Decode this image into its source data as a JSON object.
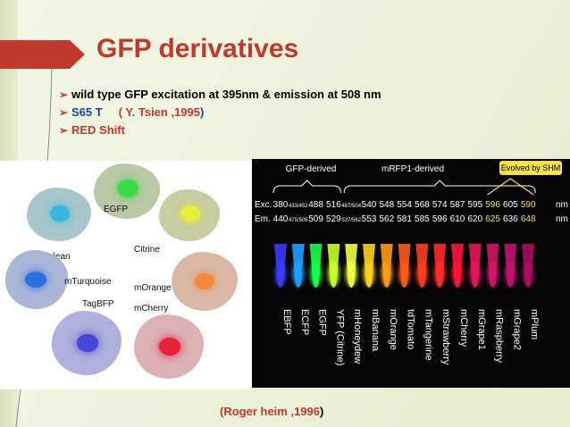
{
  "slide": {
    "title": "GFP derivatives",
    "bullets": [
      {
        "text": "wild type GFP excitation at 395nm & emission at 508 nm"
      },
      {
        "text_a": "S65 T",
        "text_b_open": "( ",
        "text_b_name": "Y. Tsien ,1995",
        "text_b_close": ")"
      },
      {
        "text": "RED Shift"
      }
    ],
    "citation": {
      "text": "(Roger heim ,1996",
      "close": ")"
    }
  },
  "proteins": [
    {
      "label": "EGFP",
      "color": "#3bdc4a"
    },
    {
      "label": "Citrine",
      "color": "#e6ee3a"
    },
    {
      "label": "Cerulean",
      "color": "#39b6e0"
    },
    {
      "label": "mTurquoise",
      "color": "#2f6fe0"
    },
    {
      "label": "mOrange",
      "color": "#f28a3a"
    },
    {
      "label": "TagBFP",
      "color": "#4848d8"
    },
    {
      "label": "mCherry",
      "color": "#e8203a"
    }
  ],
  "gel": {
    "group_labels": {
      "gfp": "GFP-derived",
      "mrfp": "mRFP1-derived",
      "shm": "Evolved by SHM"
    },
    "exc_label": "Exc.",
    "em_label": "Em.",
    "unit": "nm",
    "tubes": [
      {
        "name": "EBFP",
        "exc": "380",
        "em": "440",
        "color": "#3a3aff",
        "highlight": false
      },
      {
        "name": "ECFP",
        "exc": "433/452",
        "em": "475/505",
        "color": "#1fa0ff",
        "highlight": false
      },
      {
        "name": "EGFP",
        "exc": "488",
        "em": "509",
        "color": "#18ff4a",
        "highlight": false
      },
      {
        "name": "YFP (Citrine)",
        "exc": "516",
        "em": "529",
        "color": "#c8ff28",
        "highlight": false
      },
      {
        "name": "mHoneydew",
        "exc": "487/504",
        "em": "537/562",
        "color": "#f0ff40",
        "highlight": false
      },
      {
        "name": "mBanana",
        "exc": "540",
        "em": "553",
        "color": "#ffd21a",
        "highlight": false
      },
      {
        "name": "mOrange",
        "exc": "548",
        "em": "562",
        "color": "#ff9a12",
        "highlight": false
      },
      {
        "name": "tdTomato",
        "exc": "554",
        "em": "581",
        "color": "#ff5a12",
        "highlight": false
      },
      {
        "name": "mTangerine",
        "exc": "568",
        "em": "585",
        "color": "#ff3c20",
        "highlight": false
      },
      {
        "name": "mStrawberry",
        "exc": "574",
        "em": "596",
        "color": "#ff2a2a",
        "highlight": false
      },
      {
        "name": "mCherry",
        "exc": "587",
        "em": "610",
        "color": "#ff1438",
        "highlight": false
      },
      {
        "name": "mGrape1",
        "exc": "595",
        "em": "620",
        "color": "#e8145a",
        "highlight": false
      },
      {
        "name": "mRaspberry",
        "exc": "596",
        "em": "625",
        "color": "#d01468",
        "highlight": true
      },
      {
        "name": "mGrape2",
        "exc": "605",
        "em": "636",
        "color": "#c21070",
        "highlight": false
      },
      {
        "name": "mPlum",
        "exc": "590",
        "em": "648",
        "color": "#a80c60",
        "highlight": true
      }
    ]
  },
  "colors": {
    "accent_red": "#c0392b",
    "accent_blue": "#1a3fb0",
    "highlight_yellow": "#f4e04a"
  }
}
